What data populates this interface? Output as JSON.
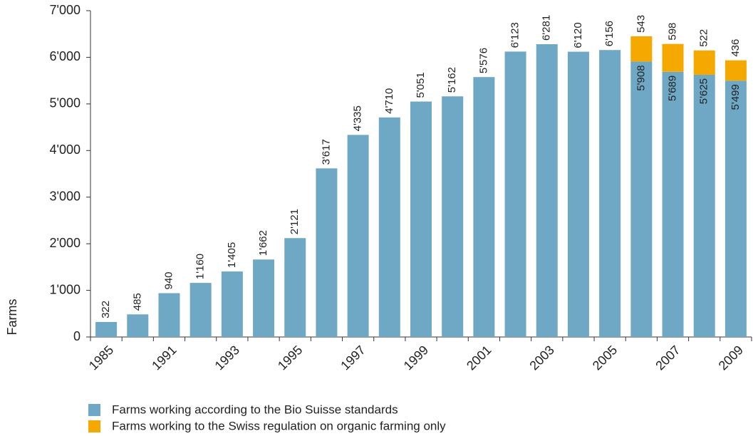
{
  "chart_data": {
    "type": "stacked_bar",
    "categories": [
      "1985",
      null,
      "1991",
      null,
      "1993",
      null,
      "1995",
      null,
      "1997",
      null,
      "1999",
      null,
      "2001",
      null,
      "2003",
      null,
      "2005",
      null,
      "2007",
      null,
      "2009"
    ],
    "series": [
      {
        "name": "Farms working according to the Bio Suisse standards",
        "color": "#6fa8c5",
        "values": [
          322,
          485,
          940,
          1160,
          1405,
          1662,
          2121,
          3617,
          4335,
          4710,
          5051,
          5162,
          5576,
          6123,
          6281,
          6120,
          6156,
          5908,
          5689,
          5625,
          5499
        ],
        "value_labels": [
          "322",
          "485",
          "940",
          "1'160",
          "1'405",
          "1'662",
          "2'121",
          "3'617",
          "4'335",
          "4'710",
          "5'051",
          "5'162",
          "5'576",
          "6'123",
          "6'281",
          "6'120",
          "6'156",
          "5'908",
          "5'689",
          "5'625",
          "5'499"
        ]
      },
      {
        "name": "Farms working to the Swiss regulation on organic farming only",
        "color": "#f5a800",
        "values": [
          null,
          null,
          null,
          null,
          null,
          null,
          null,
          null,
          null,
          null,
          null,
          null,
          null,
          null,
          null,
          null,
          null,
          543,
          598,
          522,
          436
        ],
        "value_labels": [
          null,
          null,
          null,
          null,
          null,
          null,
          null,
          null,
          null,
          null,
          null,
          null,
          null,
          null,
          null,
          null,
          null,
          "543",
          "598",
          "522",
          "436"
        ]
      }
    ],
    "y_label": "Farms",
    "ylim": [
      0,
      7000
    ],
    "yticks": [
      0,
      {
        "value": 1000,
        "label": "1'000"
      },
      {
        "value": 2000,
        "label": "2'000"
      },
      {
        "value": 3000,
        "label": "3'000"
      },
      {
        "value": 4000,
        "label": "4'000"
      },
      {
        "value": 5000,
        "label": "5'000"
      },
      {
        "value": 6000,
        "label": "6'000"
      },
      {
        "value": 7000,
        "label": "7'000"
      }
    ],
    "legend": "bottom-left"
  }
}
